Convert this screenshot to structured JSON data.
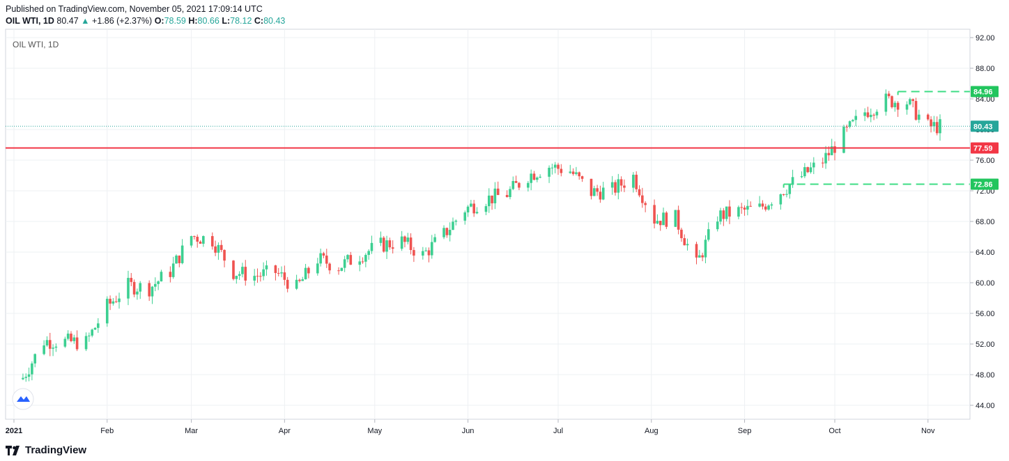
{
  "header": {
    "published": "Published on TradingView.com, November 05, 2021 17:09:14 UTC",
    "symbol": "OIL WTI, 1D",
    "last": "80.47",
    "change": "+1.86 (+2.37%)",
    "o_label": "O:",
    "o_value": "78.59",
    "h_label": "H:",
    "h_value": "80.66",
    "l_label": "L:",
    "l_value": "78.12",
    "c_label": "C:",
    "c_value": "80.43"
  },
  "footer": {
    "brand": "TradingView"
  },
  "colors": {
    "up": "#26a69a",
    "up_candle": "#3ccf91",
    "down": "#ef5350",
    "level_line": "#f23645",
    "price_line": "#26a69a",
    "grid": "#eef0f3",
    "dashed_box": "#3ddc84"
  },
  "chart_data": {
    "type": "candlestick",
    "title": "OIL WTI, 1D",
    "y_axis": {
      "min": 42,
      "max": 93,
      "ticks": [
        "92.00",
        "88.00",
        "84.00",
        "80.00",
        "76.00",
        "72.00",
        "68.00",
        "64.00",
        "60.00",
        "56.00",
        "52.00",
        "48.00",
        "44.00"
      ]
    },
    "x_axis": {
      "labels": [
        "2021",
        "Feb",
        "Mar",
        "Apr",
        "May",
        "Jun",
        "Jul",
        "Aug",
        "Sep",
        "Oct",
        "Nov"
      ]
    },
    "price_labels": [
      {
        "text": "84.96",
        "value": 84.96,
        "color": "green"
      },
      {
        "text": "80.43",
        "value": 80.43,
        "color": "teal"
      },
      {
        "text": "77.59",
        "value": 77.59,
        "color": "red"
      },
      {
        "text": "72.86",
        "value": 72.86,
        "color": "green"
      }
    ],
    "horizontal_level": 77.59,
    "current_price": 80.43,
    "dashed_levels": [
      {
        "value": 84.96,
        "from": "2021-10-22"
      },
      {
        "value": 72.86,
        "from": "2021-09-14"
      }
    ],
    "closes": [
      [
        "2021-01-04",
        47.6
      ],
      [
        "2021-01-11",
        52.4
      ],
      [
        "2021-01-18",
        52.3
      ],
      [
        "2021-01-25",
        52.2
      ],
      [
        "2021-02-01",
        56.9
      ],
      [
        "2021-02-08",
        59.6
      ],
      [
        "2021-02-15",
        59.3
      ],
      [
        "2021-02-22",
        61.5
      ],
      [
        "2021-03-01",
        66.1
      ],
      [
        "2021-03-08",
        65.6
      ],
      [
        "2021-03-15",
        61.4
      ],
      [
        "2021-03-22",
        60.9
      ],
      [
        "2021-03-29",
        61.4
      ],
      [
        "2021-04-05",
        59.3
      ],
      [
        "2021-04-12",
        63.1
      ],
      [
        "2021-04-19",
        62.1
      ],
      [
        "2021-04-26",
        63.6
      ],
      [
        "2021-05-03",
        64.9
      ],
      [
        "2021-05-10",
        65.4
      ],
      [
        "2021-05-17",
        63.6
      ],
      [
        "2021-05-24",
        66.3
      ],
      [
        "2021-05-31",
        69.6
      ],
      [
        "2021-06-07",
        70.9
      ],
      [
        "2021-06-14",
        71.6
      ],
      [
        "2021-06-21",
        74.0
      ],
      [
        "2021-06-28",
        75.2
      ],
      [
        "2021-07-05",
        74.6
      ],
      [
        "2021-07-12",
        71.8
      ],
      [
        "2021-07-19",
        72.1
      ],
      [
        "2021-07-26",
        73.9
      ],
      [
        "2021-08-02",
        68.3
      ],
      [
        "2021-08-09",
        68.4
      ],
      [
        "2021-08-16",
        62.3
      ],
      [
        "2021-08-23",
        68.7
      ],
      [
        "2021-08-30",
        69.3
      ],
      [
        "2021-09-06",
        69.7
      ],
      [
        "2021-09-13",
        71.9
      ],
      [
        "2021-09-20",
        73.9
      ],
      [
        "2021-09-27",
        75.9
      ],
      [
        "2021-10-04",
        79.3
      ],
      [
        "2021-10-11",
        82.3
      ],
      [
        "2021-10-18",
        83.8
      ],
      [
        "2021-10-25",
        83.6
      ],
      [
        "2021-11-01",
        80.4
      ]
    ]
  }
}
